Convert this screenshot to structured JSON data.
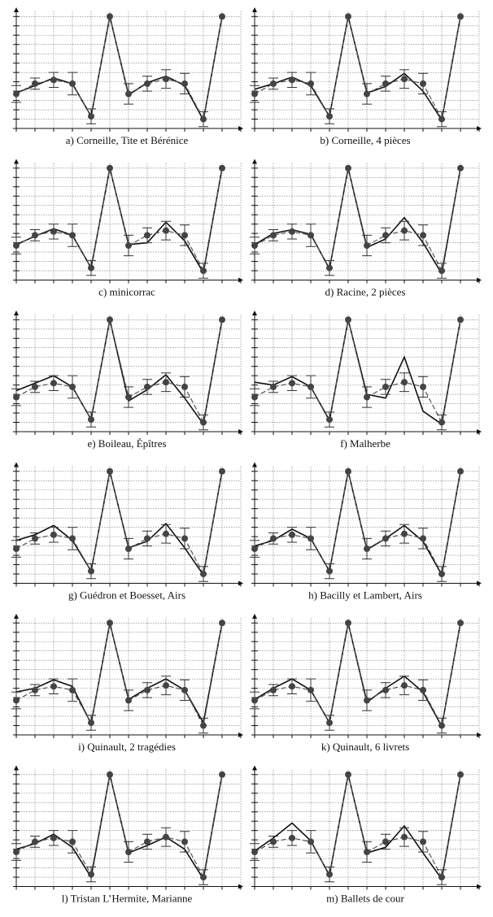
{
  "chart_data": [
    {
      "type": "line",
      "caption": "a) Corneille, Tite et Bérénice",
      "x": [
        0,
        1,
        2,
        3,
        4,
        5,
        6,
        7,
        8,
        9,
        10,
        11
      ],
      "xlim": [
        0,
        12
      ],
      "ylim": [
        0,
        12.2
      ],
      "xticks": [
        0,
        1,
        2,
        3,
        4,
        5,
        6,
        7,
        8,
        9,
        10,
        11,
        12
      ],
      "yticks": [
        0,
        1,
        2,
        3,
        4,
        5,
        6,
        7,
        8,
        9,
        10,
        11,
        12
      ],
      "grid": true,
      "series": [
        {
          "style": "solid",
          "color": "#111111",
          "values": [
            3.8,
            4.6,
            5.4,
            4.8,
            1.3,
            12,
            3.6,
            4.9,
            5.6,
            4.6,
            0.9,
            12
          ]
        },
        {
          "style": "dashed",
          "color": "#555555",
          "values": [
            3.7,
            4.8,
            5.2,
            4.8,
            1.3,
            12,
            3.7,
            4.8,
            5.3,
            4.8,
            1.0,
            12
          ],
          "errors": [
            0.9,
            0.6,
            0.8,
            1.2,
            0.8,
            0,
            1.1,
            0.8,
            1.0,
            1.1,
            0.8,
            0
          ]
        }
      ]
    },
    {
      "type": "line",
      "caption": "b) Corneille, 4 pièces",
      "x": [
        0,
        1,
        2,
        3,
        4,
        5,
        6,
        7,
        8,
        9,
        10,
        11
      ],
      "xlim": [
        0,
        12
      ],
      "ylim": [
        0,
        12.2
      ],
      "xticks": [
        0,
        1,
        2,
        3,
        4,
        5,
        6,
        7,
        8,
        9,
        10,
        11,
        12
      ],
      "yticks": [
        0,
        1,
        2,
        3,
        4,
        5,
        6,
        7,
        8,
        9,
        10,
        11,
        12
      ],
      "grid": true,
      "series": [
        {
          "style": "solid",
          "color": "#111111",
          "values": [
            4.2,
            4.8,
            5.5,
            4.6,
            1.3,
            12,
            3.8,
            4.5,
            5.9,
            4.0,
            0.9,
            12
          ]
        },
        {
          "style": "dashed",
          "color": "#555555",
          "values": [
            3.7,
            4.8,
            5.2,
            4.8,
            1.3,
            12,
            3.7,
            4.8,
            5.3,
            4.8,
            1.0,
            12
          ],
          "errors": [
            0.9,
            0.6,
            0.8,
            1.2,
            0.8,
            0,
            1.1,
            0.8,
            1.0,
            1.1,
            0.8,
            0
          ]
        }
      ]
    },
    {
      "type": "line",
      "caption": "c) minicorrac",
      "x": [
        0,
        1,
        2,
        3,
        4,
        5,
        6,
        7,
        8,
        9,
        10,
        11
      ],
      "xlim": [
        0,
        12
      ],
      "ylim": [
        0,
        12.2
      ],
      "xticks": [
        0,
        1,
        2,
        3,
        4,
        5,
        6,
        7,
        8,
        9,
        10,
        11,
        12
      ],
      "yticks": [
        0,
        1,
        2,
        3,
        4,
        5,
        6,
        7,
        8,
        9,
        10,
        11,
        12
      ],
      "grid": true,
      "series": [
        {
          "style": "solid",
          "color": "#111111",
          "values": [
            3.8,
            4.7,
            5.5,
            4.8,
            1.3,
            12,
            3.8,
            4.0,
            6.2,
            4.2,
            0.8,
            12
          ]
        },
        {
          "style": "dashed",
          "color": "#555555",
          "values": [
            3.7,
            4.8,
            5.2,
            4.8,
            1.3,
            12,
            3.7,
            4.8,
            5.3,
            4.8,
            1.0,
            12
          ],
          "errors": [
            0.9,
            0.6,
            0.8,
            1.2,
            0.8,
            0,
            1.1,
            0.8,
            1.0,
            1.1,
            0.8,
            0
          ]
        }
      ]
    },
    {
      "type": "line",
      "caption": "d) Racine, 2 pièces",
      "x": [
        0,
        1,
        2,
        3,
        4,
        5,
        6,
        7,
        8,
        9,
        10,
        11
      ],
      "xlim": [
        0,
        12
      ],
      "ylim": [
        0,
        12.2
      ],
      "xticks": [
        0,
        1,
        2,
        3,
        4,
        5,
        6,
        7,
        8,
        9,
        10,
        11,
        12
      ],
      "yticks": [
        0,
        1,
        2,
        3,
        4,
        5,
        6,
        7,
        8,
        9,
        10,
        11,
        12
      ],
      "grid": true,
      "series": [
        {
          "style": "solid",
          "color": "#111111",
          "values": [
            3.8,
            5.0,
            5.4,
            4.9,
            1.2,
            12,
            3.5,
            4.4,
            6.7,
            4.0,
            0.7,
            12
          ]
        },
        {
          "style": "dashed",
          "color": "#555555",
          "values": [
            3.7,
            4.8,
            5.2,
            4.8,
            1.3,
            12,
            3.7,
            4.8,
            5.3,
            4.8,
            1.0,
            12
          ],
          "errors": [
            0.9,
            0.6,
            0.8,
            1.2,
            0.8,
            0,
            1.1,
            0.8,
            1.0,
            1.1,
            0.8,
            0
          ]
        }
      ]
    },
    {
      "type": "line",
      "caption": "e) Boileau, Épîtres",
      "x": [
        0,
        1,
        2,
        3,
        4,
        5,
        6,
        7,
        8,
        9,
        10,
        11
      ],
      "xlim": [
        0,
        12
      ],
      "ylim": [
        0,
        12.2
      ],
      "xticks": [
        0,
        1,
        2,
        3,
        4,
        5,
        6,
        7,
        8,
        9,
        10,
        11,
        12
      ],
      "yticks": [
        0,
        1,
        2,
        3,
        4,
        5,
        6,
        7,
        8,
        9,
        10,
        11,
        12
      ],
      "grid": true,
      "series": [
        {
          "style": "solid",
          "color": "#111111",
          "values": [
            4.4,
            5.2,
            6.0,
            4.8,
            1.3,
            12,
            3.3,
            4.5,
            6.1,
            3.6,
            0.8,
            12
          ]
        },
        {
          "style": "dashed",
          "color": "#555555",
          "values": [
            3.7,
            4.8,
            5.2,
            4.8,
            1.3,
            12,
            3.7,
            4.8,
            5.3,
            4.8,
            1.0,
            12
          ],
          "errors": [
            0.9,
            0.6,
            0.8,
            1.2,
            0.8,
            0,
            1.1,
            0.8,
            1.0,
            1.1,
            0.8,
            0
          ]
        }
      ]
    },
    {
      "type": "line",
      "caption": "f) Malherbe",
      "x": [
        0,
        1,
        2,
        3,
        4,
        5,
        6,
        7,
        8,
        9,
        10,
        11
      ],
      "xlim": [
        0,
        12
      ],
      "ylim": [
        0,
        12.2
      ],
      "xticks": [
        0,
        1,
        2,
        3,
        4,
        5,
        6,
        7,
        8,
        9,
        10,
        11,
        12
      ],
      "yticks": [
        0,
        1,
        2,
        3,
        4,
        5,
        6,
        7,
        8,
        9,
        10,
        11,
        12
      ],
      "grid": true,
      "series": [
        {
          "style": "solid",
          "color": "#111111",
          "values": [
            5.3,
            5.0,
            5.9,
            4.8,
            1.2,
            12,
            4.0,
            3.6,
            8.0,
            2.2,
            0.8,
            12
          ]
        },
        {
          "style": "dashed",
          "color": "#555555",
          "values": [
            3.7,
            4.8,
            5.2,
            4.8,
            1.3,
            12,
            3.7,
            4.8,
            5.3,
            4.8,
            1.0,
            12
          ],
          "errors": [
            0.9,
            0.6,
            0.8,
            1.2,
            0.8,
            0,
            1.1,
            0.8,
            1.0,
            1.1,
            0.8,
            0
          ]
        }
      ]
    },
    {
      "type": "line",
      "caption": "g) Guédron et Boesset, Airs",
      "x": [
        0,
        1,
        2,
        3,
        4,
        5,
        6,
        7,
        8,
        9,
        10,
        11
      ],
      "xlim": [
        0,
        12
      ],
      "ylim": [
        0,
        12.2
      ],
      "xticks": [
        0,
        1,
        2,
        3,
        4,
        5,
        6,
        7,
        8,
        9,
        10,
        11,
        12
      ],
      "yticks": [
        0,
        1,
        2,
        3,
        4,
        5,
        6,
        7,
        8,
        9,
        10,
        11,
        12
      ],
      "grid": true,
      "series": [
        {
          "style": "solid",
          "color": "#111111",
          "values": [
            4.6,
            5.2,
            6.2,
            4.6,
            1.3,
            12,
            3.8,
            4.5,
            6.4,
            3.8,
            0.9,
            12
          ]
        },
        {
          "style": "dashed",
          "color": "#555555",
          "values": [
            3.7,
            4.8,
            5.2,
            4.8,
            1.3,
            12,
            3.7,
            4.8,
            5.3,
            4.8,
            1.0,
            12
          ],
          "errors": [
            0.9,
            0.6,
            0.8,
            1.2,
            0.8,
            0,
            1.1,
            0.8,
            1.0,
            1.1,
            0.8,
            0
          ]
        }
      ]
    },
    {
      "type": "line",
      "caption": "h) Bacilly et Lambert, Airs",
      "x": [
        0,
        1,
        2,
        3,
        4,
        5,
        6,
        7,
        8,
        9,
        10,
        11
      ],
      "xlim": [
        0,
        12
      ],
      "ylim": [
        0,
        12.2
      ],
      "xticks": [
        0,
        1,
        2,
        3,
        4,
        5,
        6,
        7,
        8,
        9,
        10,
        11,
        12
      ],
      "yticks": [
        0,
        1,
        2,
        3,
        4,
        5,
        6,
        7,
        8,
        9,
        10,
        11,
        12
      ],
      "grid": true,
      "series": [
        {
          "style": "solid",
          "color": "#111111",
          "values": [
            4.0,
            4.6,
            5.8,
            4.8,
            1.3,
            12,
            3.6,
            4.8,
            6.2,
            4.5,
            0.9,
            12
          ]
        },
        {
          "style": "dashed",
          "color": "#555555",
          "values": [
            3.7,
            4.8,
            5.2,
            4.8,
            1.3,
            12,
            3.7,
            4.8,
            5.3,
            4.8,
            1.0,
            12
          ],
          "errors": [
            0.9,
            0.6,
            0.8,
            1.2,
            0.8,
            0,
            1.1,
            0.8,
            1.0,
            1.1,
            0.8,
            0
          ]
        }
      ]
    },
    {
      "type": "line",
      "caption": "i) Quinault, 2 tragédies",
      "x": [
        0,
        1,
        2,
        3,
        4,
        5,
        6,
        7,
        8,
        9,
        10,
        11
      ],
      "xlim": [
        0,
        12
      ],
      "ylim": [
        0,
        12.2
      ],
      "xticks": [
        0,
        1,
        2,
        3,
        4,
        5,
        6,
        7,
        8,
        9,
        10,
        11,
        12
      ],
      "yticks": [
        0,
        1,
        2,
        3,
        4,
        5,
        6,
        7,
        8,
        9,
        10,
        11,
        12
      ],
      "grid": true,
      "series": [
        {
          "style": "solid",
          "color": "#111111",
          "values": [
            4.6,
            5.0,
            5.9,
            5.2,
            1.2,
            12,
            3.8,
            5.0,
            6.0,
            4.8,
            1.3,
            12
          ]
        },
        {
          "style": "dashed",
          "color": "#555555",
          "values": [
            3.7,
            4.8,
            5.2,
            4.8,
            1.3,
            12,
            3.7,
            4.8,
            5.3,
            4.8,
            1.0,
            12
          ],
          "errors": [
            0.9,
            0.6,
            0.8,
            1.2,
            0.8,
            0,
            1.1,
            0.8,
            1.0,
            1.1,
            0.8,
            0
          ]
        }
      ]
    },
    {
      "type": "line",
      "caption": "k) Quinault, 6 livrets",
      "x": [
        0,
        1,
        2,
        3,
        4,
        5,
        6,
        7,
        8,
        9,
        10,
        11
      ],
      "xlim": [
        0,
        12
      ],
      "ylim": [
        0,
        12.2
      ],
      "xticks": [
        0,
        1,
        2,
        3,
        4,
        5,
        6,
        7,
        8,
        9,
        10,
        11,
        12
      ],
      "yticks": [
        0,
        1,
        2,
        3,
        4,
        5,
        6,
        7,
        8,
        9,
        10,
        11,
        12
      ],
      "grid": true,
      "series": [
        {
          "style": "solid",
          "color": "#111111",
          "values": [
            3.8,
            5.0,
            6.0,
            4.8,
            1.3,
            12,
            3.5,
            5.0,
            6.3,
            4.6,
            0.9,
            12
          ]
        },
        {
          "style": "dashed",
          "color": "#555555",
          "values": [
            3.7,
            4.8,
            5.2,
            4.8,
            1.3,
            12,
            3.7,
            4.8,
            5.3,
            4.8,
            1.0,
            12
          ],
          "errors": [
            0.9,
            0.6,
            0.8,
            1.2,
            0.8,
            0,
            1.1,
            0.8,
            1.0,
            1.1,
            0.8,
            0
          ]
        }
      ]
    },
    {
      "type": "line",
      "caption": "l) Tristan L’Hermite, Marianne",
      "x": [
        0,
        1,
        2,
        3,
        4,
        5,
        6,
        7,
        8,
        9,
        10,
        11
      ],
      "xlim": [
        0,
        12
      ],
      "ylim": [
        0,
        12.2
      ],
      "xticks": [
        0,
        1,
        2,
        3,
        4,
        5,
        6,
        7,
        8,
        9,
        10,
        11,
        12
      ],
      "yticks": [
        0,
        1,
        2,
        3,
        4,
        5,
        6,
        7,
        8,
        9,
        10,
        11,
        12
      ],
      "grid": true,
      "series": [
        {
          "style": "solid",
          "color": "#111111",
          "values": [
            4.0,
            4.6,
            5.6,
            4.2,
            1.0,
            12,
            3.6,
            4.4,
            5.3,
            4.0,
            0.8,
            12
          ]
        },
        {
          "style": "dashed",
          "color": "#555555",
          "values": [
            3.7,
            4.8,
            5.2,
            4.8,
            1.3,
            12,
            3.7,
            4.8,
            5.3,
            4.8,
            1.0,
            12
          ],
          "errors": [
            0.9,
            0.6,
            0.8,
            1.2,
            0.8,
            0,
            1.1,
            0.8,
            1.0,
            1.1,
            0.8,
            0
          ]
        }
      ]
    },
    {
      "type": "line",
      "caption": "m) Ballets de cour",
      "x": [
        0,
        1,
        2,
        3,
        4,
        5,
        6,
        7,
        8,
        9,
        10,
        11
      ],
      "xlim": [
        0,
        12
      ],
      "ylim": [
        0,
        12.2
      ],
      "xticks": [
        0,
        1,
        2,
        3,
        4,
        5,
        6,
        7,
        8,
        9,
        10,
        11,
        12
      ],
      "yticks": [
        0,
        1,
        2,
        3,
        4,
        5,
        6,
        7,
        8,
        9,
        10,
        11,
        12
      ],
      "grid": true,
      "series": [
        {
          "style": "solid",
          "color": "#111111",
          "values": [
            3.8,
            5.2,
            6.8,
            4.9,
            1.2,
            12,
            3.6,
            4.2,
            6.5,
            3.6,
            0.8,
            12
          ]
        },
        {
          "style": "dashed",
          "color": "#555555",
          "values": [
            3.7,
            4.8,
            5.2,
            4.8,
            1.3,
            12,
            3.7,
            4.8,
            5.3,
            4.8,
            1.0,
            12
          ],
          "errors": [
            0.9,
            0.6,
            0.8,
            1.2,
            0.8,
            0,
            1.1,
            0.8,
            1.0,
            1.1,
            0.8,
            0
          ]
        }
      ]
    }
  ]
}
